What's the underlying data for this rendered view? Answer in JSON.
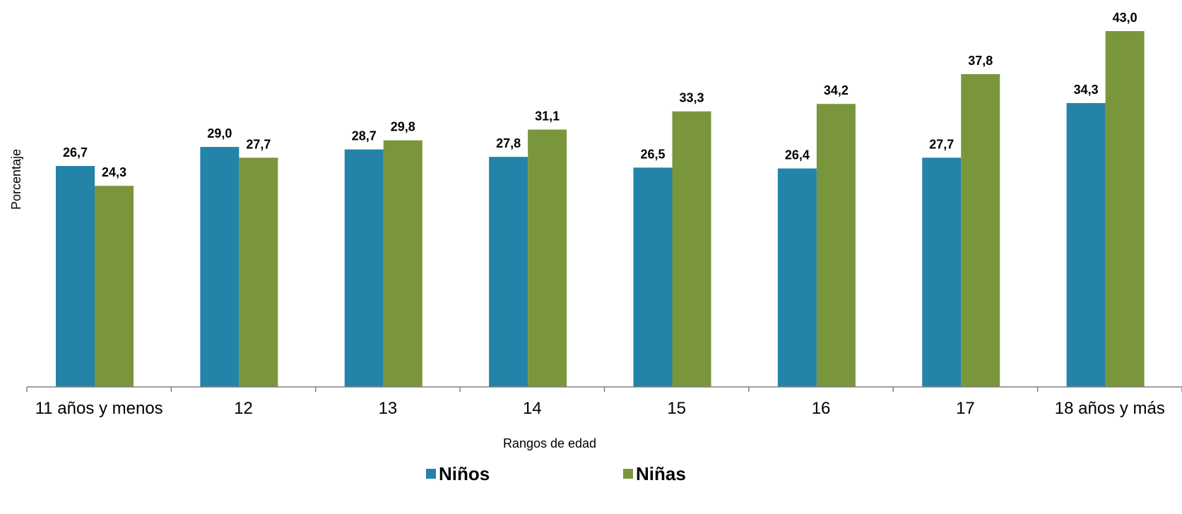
{
  "chart_data": {
    "type": "bar",
    "xlabel": "Rangos de edad",
    "ylabel": "Porcentaje",
    "categories": [
      "11 años y menos",
      "12",
      "13",
      "14",
      "15",
      "16",
      "17",
      "18 años y más"
    ],
    "series": [
      {
        "name": "Niños",
        "color": "#2383A8",
        "values": [
          26.7,
          29.0,
          28.7,
          27.8,
          26.5,
          26.4,
          27.7,
          34.3
        ],
        "labels": [
          "26,7",
          "29,0",
          "28,7",
          "27,8",
          "26,5",
          "26,4",
          "27,7",
          "34,3"
        ]
      },
      {
        "name": "Niñas",
        "color": "#7A963C",
        "values": [
          24.3,
          27.7,
          29.8,
          31.1,
          33.3,
          34.2,
          37.8,
          43.0
        ],
        "labels": [
          "24,3",
          "27,7",
          "29,8",
          "31,1",
          "33,3",
          "34,2",
          "37,8",
          "43,0"
        ]
      }
    ],
    "ylim": [
      0,
      46
    ],
    "grid": false,
    "legend_position": "bottom"
  }
}
